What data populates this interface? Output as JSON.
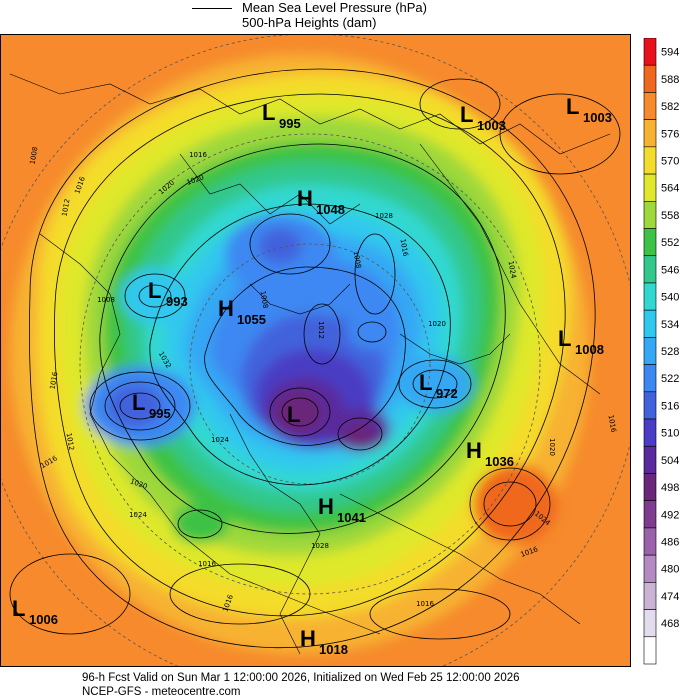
{
  "legend": {
    "mslp_label": "Mean Sea Level Pressure (hPa)",
    "heights_label": "500-hPa Heights (dam)"
  },
  "footer": {
    "line1": "96-h Fcst Valid on Sun Mar  1 12:00:00 2026, Initialized on Wed Feb 25 12:00:00 2026",
    "line2": "NCEP-GFS  -  meteocentre.com"
  },
  "colorbar": {
    "levels": [
      {
        "value": "594",
        "color": "#e8121c"
      },
      {
        "value": "588",
        "color": "#f0681e"
      },
      {
        "value": "582",
        "color": "#f68a2c"
      },
      {
        "value": "576",
        "color": "#f7b232"
      },
      {
        "value": "570",
        "color": "#f4dc2a"
      },
      {
        "value": "564",
        "color": "#dfe82c"
      },
      {
        "value": "558",
        "color": "#9ed83a"
      },
      {
        "value": "552",
        "color": "#3cc244"
      },
      {
        "value": "546",
        "color": "#32c88c"
      },
      {
        "value": "540",
        "color": "#30d8d0"
      },
      {
        "value": "534",
        "color": "#30c8ee"
      },
      {
        "value": "528",
        "color": "#34a8f4"
      },
      {
        "value": "522",
        "color": "#3c88f2"
      },
      {
        "value": "516",
        "color": "#4262dc"
      },
      {
        "value": "510",
        "color": "#4a3cc4"
      },
      {
        "value": "504",
        "color": "#5a2a9c"
      },
      {
        "value": "498",
        "color": "#6a2678"
      },
      {
        "value": "492",
        "color": "#7e3c8e"
      },
      {
        "value": "486",
        "color": "#9a62aa"
      },
      {
        "value": "480",
        "color": "#b48ac2"
      },
      {
        "value": "474",
        "color": "#cab4d6"
      },
      {
        "value": "468",
        "color": "#e2dcec"
      },
      {
        "value": "",
        "color": "#ffffff"
      }
    ]
  },
  "pressure_centers": [
    {
      "type": "L",
      "value": "995"
    },
    {
      "type": "L",
      "value": "1003"
    },
    {
      "type": "L",
      "value": "1003"
    },
    {
      "type": "H",
      "value": "1048"
    },
    {
      "type": "L",
      "value": "993"
    },
    {
      "type": "H",
      "value": "1055"
    },
    {
      "type": "L",
      "value": "1008"
    },
    {
      "type": "L",
      "value": "995"
    },
    {
      "type": "L",
      "value": "972"
    },
    {
      "type": "H",
      "value": "1036"
    },
    {
      "type": "H",
      "value": "1041"
    },
    {
      "type": "L",
      "value": "1006"
    },
    {
      "type": "H",
      "value": "1018"
    },
    {
      "type": "L",
      "value": ""
    }
  ],
  "isobar_labels": [
    "1008",
    "1012",
    "1016",
    "1020",
    "1008",
    "1016",
    "1012",
    "1016",
    "1020",
    "1024",
    "1032",
    "1020",
    "1016",
    "1028",
    "1016",
    "1008",
    "1012",
    "1024",
    "1020",
    "1008",
    "1020",
    "1024",
    "1016",
    "1024",
    "1028",
    "1016",
    "1016",
    "1016",
    "1016"
  ],
  "colors": {
    "ocean_warm": "#f68a2c",
    "land_line": "#000000"
  }
}
